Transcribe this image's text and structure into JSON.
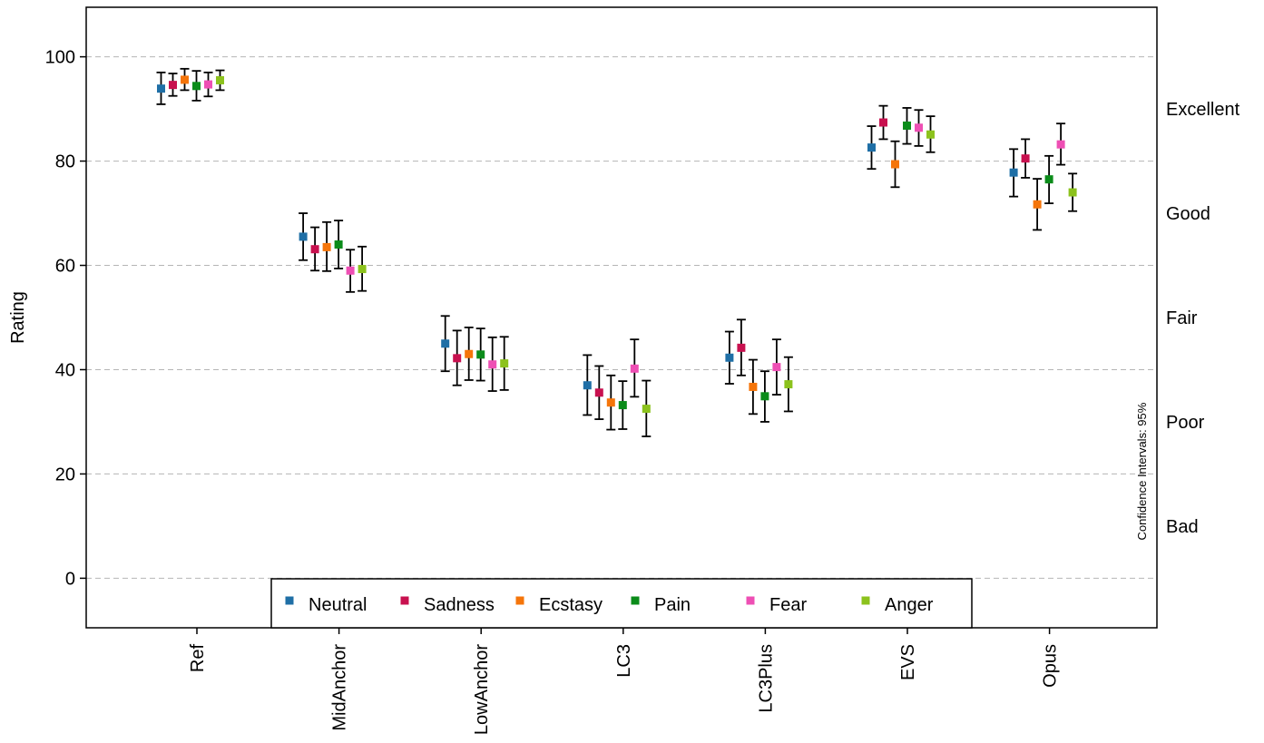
{
  "chart_data": {
    "type": "scatter",
    "ylabel": "Rating",
    "ylim": [
      -9.5,
      109.5
    ],
    "yticks": [
      0,
      20,
      40,
      60,
      80,
      100
    ],
    "grid": "horizontal dashed",
    "categories": [
      "Ref",
      "MidAnchor",
      "LowAnchor",
      "LC3",
      "LC3Plus",
      "EVS",
      "Opus"
    ],
    "quality_labels": [
      {
        "label": "Excellent",
        "y": 90
      },
      {
        "label": "Good",
        "y": 70
      },
      {
        "label": "Fair",
        "y": 50
      },
      {
        "label": "Poor",
        "y": 30
      },
      {
        "label": "Bad",
        "y": 10
      }
    ],
    "annotation": "Confidence Intervals: 95%",
    "legend_position": "bottom-center",
    "series": [
      {
        "name": "Neutral",
        "color": "#1f6fa6",
        "values": [
          93.9,
          65.5,
          45.0,
          37.0,
          42.3,
          82.6,
          77.8
        ],
        "ci_low": [
          90.9,
          61.0,
          39.7,
          31.3,
          37.3,
          78.5,
          73.2
        ],
        "ci_high": [
          97.0,
          70.0,
          50.3,
          42.8,
          47.3,
          86.7,
          82.3
        ]
      },
      {
        "name": "Sadness",
        "color": "#c8114f",
        "values": [
          94.6,
          63.1,
          42.2,
          35.6,
          44.2,
          87.4,
          80.5
        ],
        "ci_low": [
          92.5,
          59.0,
          37.0,
          30.5,
          38.9,
          84.2,
          76.8
        ],
        "ci_high": [
          96.8,
          67.3,
          47.5,
          40.7,
          49.6,
          90.6,
          84.2
        ]
      },
      {
        "name": "Ecstasy",
        "color": "#f5750a",
        "values": [
          95.6,
          63.5,
          43.0,
          33.7,
          36.7,
          79.4,
          71.7
        ],
        "ci_low": [
          93.6,
          58.9,
          38.0,
          28.5,
          31.5,
          75.0,
          66.8
        ],
        "ci_high": [
          97.7,
          68.3,
          48.1,
          38.9,
          41.9,
          83.8,
          76.6
        ]
      },
      {
        "name": "Pain",
        "color": "#0b8c1a",
        "values": [
          94.4,
          64.0,
          42.9,
          33.2,
          34.9,
          86.8,
          76.5
        ],
        "ci_low": [
          91.6,
          59.4,
          37.9,
          28.6,
          30.0,
          83.3,
          71.9
        ],
        "ci_high": [
          97.3,
          68.6,
          47.9,
          37.8,
          39.7,
          90.2,
          81.0
        ]
      },
      {
        "name": "Fear",
        "color": "#ee4fb4",
        "values": [
          94.7,
          59.0,
          41.0,
          40.2,
          40.5,
          86.4,
          83.2
        ],
        "ci_low": [
          92.4,
          54.9,
          35.9,
          34.8,
          35.2,
          82.9,
          79.3
        ],
        "ci_high": [
          97.0,
          63.0,
          46.2,
          45.8,
          45.8,
          89.8,
          87.2
        ]
      },
      {
        "name": "Anger",
        "color": "#8cc21d",
        "values": [
          95.5,
          59.3,
          41.2,
          32.5,
          37.2,
          85.1,
          74.0
        ],
        "ci_low": [
          93.6,
          55.1,
          36.1,
          27.2,
          32.0,
          81.7,
          70.4
        ],
        "ci_high": [
          97.4,
          63.6,
          46.3,
          37.9,
          42.4,
          88.6,
          77.6
        ]
      }
    ]
  }
}
